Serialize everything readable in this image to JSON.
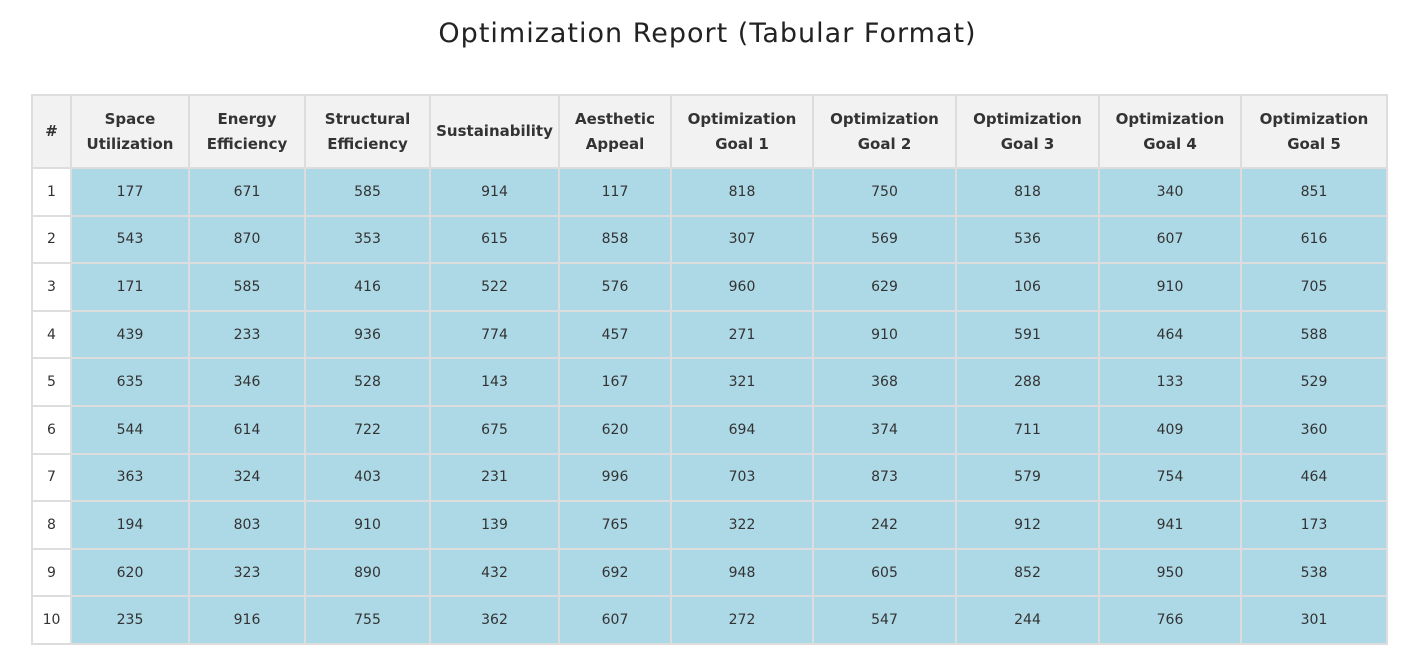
{
  "title": "Optimization Report (Tabular Format)",
  "chart_data": {
    "type": "table",
    "title": "Optimization Report (Tabular Format)",
    "columns": [
      "#",
      "Space Utilization",
      "Energy Efficiency",
      "Structural Efficiency",
      "Sustainability",
      "Aesthetic Appeal",
      "Optimization Goal 1",
      "Optimization Goal 2",
      "Optimization Goal 3",
      "Optimization Goal 4",
      "Optimization Goal 5"
    ],
    "rows": [
      [
        1,
        177,
        671,
        585,
        914,
        117,
        818,
        750,
        818,
        340,
        851
      ],
      [
        2,
        543,
        870,
        353,
        615,
        858,
        307,
        569,
        536,
        607,
        616
      ],
      [
        3,
        171,
        585,
        416,
        522,
        576,
        960,
        629,
        106,
        910,
        705
      ],
      [
        4,
        439,
        233,
        936,
        774,
        457,
        271,
        910,
        591,
        464,
        588
      ],
      [
        5,
        635,
        346,
        528,
        143,
        167,
        321,
        368,
        288,
        133,
        529
      ],
      [
        6,
        544,
        614,
        722,
        675,
        620,
        694,
        374,
        711,
        409,
        360
      ],
      [
        7,
        363,
        324,
        403,
        231,
        996,
        703,
        873,
        579,
        754,
        464
      ],
      [
        8,
        194,
        803,
        910,
        139,
        765,
        322,
        242,
        912,
        941,
        173
      ],
      [
        9,
        620,
        323,
        890,
        432,
        692,
        948,
        605,
        852,
        950,
        538
      ],
      [
        10,
        235,
        916,
        755,
        362,
        607,
        272,
        547,
        244,
        766,
        301
      ]
    ],
    "colors": {
      "header_bg": "#f2f2f2",
      "cell_bg": "#add8e6",
      "index_bg": "#ffffff",
      "border": "#dddddd"
    }
  }
}
